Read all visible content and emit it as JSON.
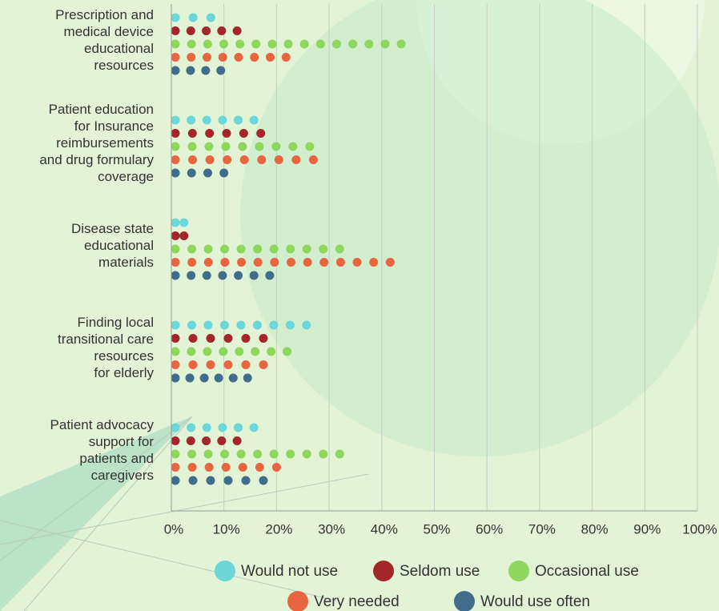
{
  "chart_data": {
    "type": "dot",
    "categories": [
      "Prescription and\nmedical device\neducational\nresources",
      "Patient education\nfor Insurance\nreimbursements\nand drug formulary\ncoverage",
      "Disease state\neducational\nmaterials",
      "Finding local\ntransitional care\nresources\nfor elderly",
      "Patient advocacy\nsupport for\npatients and\ncaregivers"
    ],
    "series": [
      {
        "name": "Would not use",
        "color": "#6dd6d8",
        "values": [
          7.5,
          15.7,
          2.4,
          25.7,
          15.7
        ]
      },
      {
        "name": "Seldom use",
        "color": "#a3262a",
        "values": [
          12.5,
          17,
          2.4,
          17.5,
          12.5
        ]
      },
      {
        "name": "Occasional use",
        "color": "#8fd65c",
        "values": [
          43.7,
          26.3,
          32,
          22,
          32
        ]
      },
      {
        "name": "Very needed",
        "color": "#e8663f",
        "values": [
          21.8,
          27,
          41.6,
          17.5,
          20
        ]
      },
      {
        "name": "Would use often",
        "color": "#416d8c",
        "values": [
          9.4,
          10,
          18.7,
          14.5,
          17.5
        ]
      }
    ],
    "xlim": [
      0,
      100
    ],
    "xticks": [
      {
        "value": 0,
        "label": "0%"
      },
      {
        "value": 10,
        "label": "10%"
      },
      {
        "value": 20,
        "label": "20%"
      },
      {
        "value": 30,
        "label": "30%"
      },
      {
        "value": 40,
        "label": "40%"
      },
      {
        "value": 50,
        "label": "50%"
      },
      {
        "value": 60,
        "label": "60%"
      },
      {
        "value": 70,
        "label": "70%"
      },
      {
        "value": 80,
        "label": "80%"
      },
      {
        "value": 90,
        "label": "90%"
      },
      {
        "value": 100,
        "label": "100%"
      }
    ],
    "grid": true
  }
}
